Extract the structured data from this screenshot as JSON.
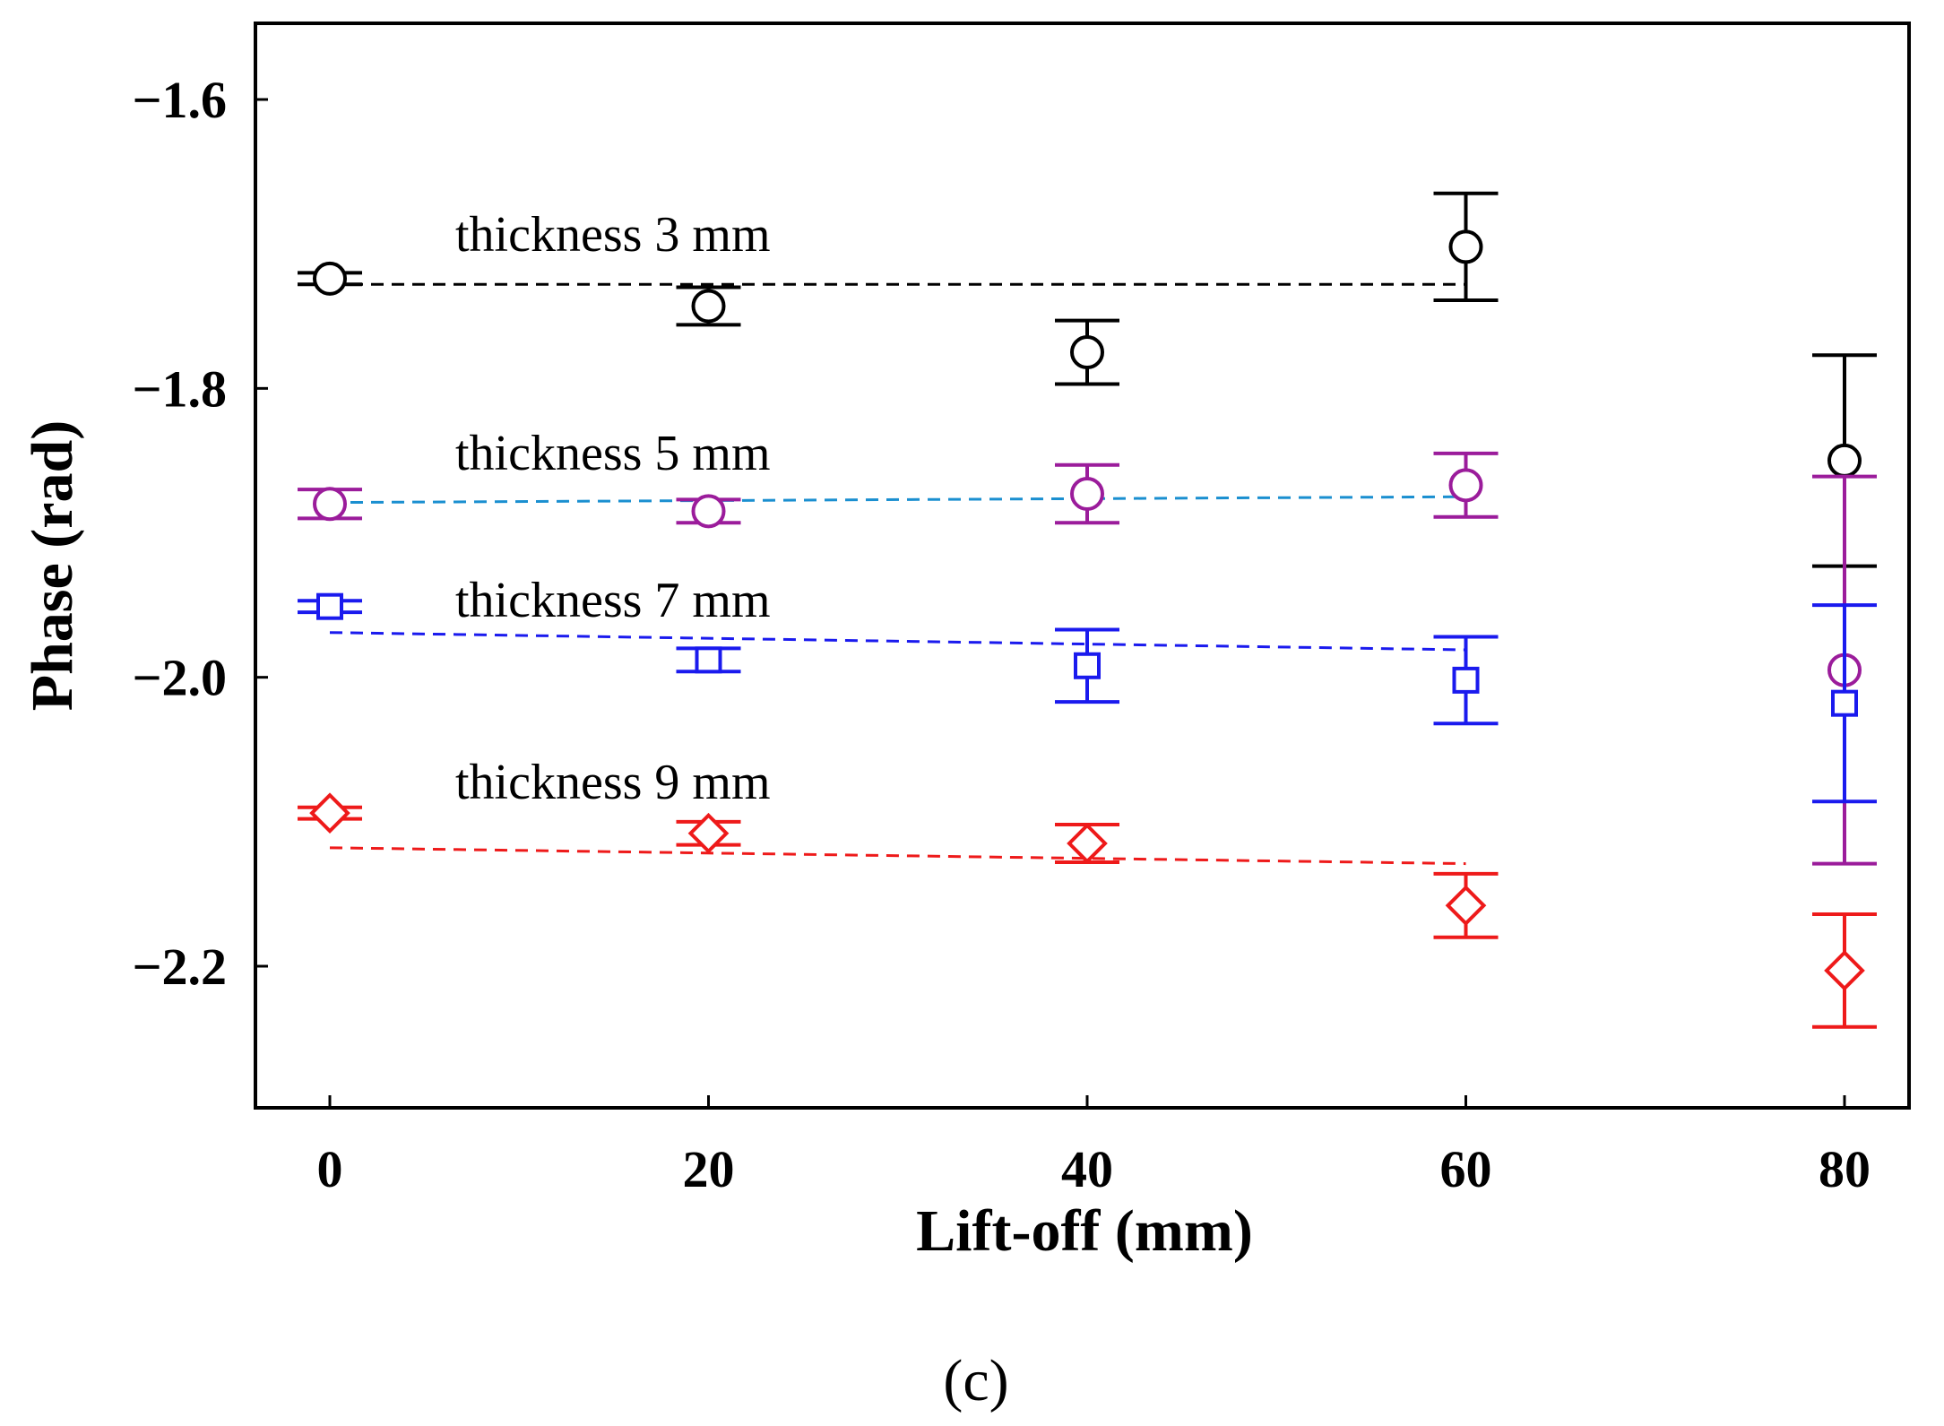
{
  "chart_data": {
    "type": "scatter",
    "title": "",
    "xlabel": "Lift-off (mm)",
    "ylabel": "Phase (rad)",
    "xlim": [
      -4,
      82
    ],
    "ylim": [
      -2.3,
      -1.55
    ],
    "xticks": [
      0,
      20,
      40,
      60,
      80
    ],
    "yticks": [
      -2.2,
      -2.0,
      -1.8,
      -1.6
    ],
    "xtick_labels": [
      "0",
      "20",
      "40",
      "60",
      "80"
    ],
    "ytick_labels": [
      "−2.2",
      "−2.0",
      "−1.8",
      "−1.6"
    ],
    "grid": false,
    "series": [
      {
        "name": "thickness 3 mm",
        "label": "thickness 3 mm",
        "color": "#000000",
        "marker": "circle",
        "x": [
          0,
          20,
          40,
          60,
          80
        ],
        "y": [
          -1.724,
          -1.743,
          -1.775,
          -1.702,
          -1.85
        ],
        "err": [
          0.004,
          0.013,
          0.022,
          0.037,
          0.073
        ],
        "fit": {
          "x": [
            0,
            60
          ],
          "y": [
            -1.728,
            -1.728
          ],
          "color": "#000000"
        }
      },
      {
        "name": "thickness 5 mm",
        "label": "thickness 5 mm",
        "color": "#9b1c9b",
        "marker": "circle",
        "x": [
          0,
          20,
          40,
          60,
          80
        ],
        "y": [
          -1.88,
          -1.885,
          -1.873,
          -1.867,
          -1.995
        ],
        "err": [
          0.01,
          0.008,
          0.02,
          0.022,
          0.134
        ],
        "fit": {
          "x": [
            0,
            60
          ],
          "y": [
            -1.879,
            -1.875
          ],
          "color": "#1a8fd0"
        }
      },
      {
        "name": "thickness 7 mm",
        "label": "thickness 7 mm",
        "color": "#1a1aee",
        "marker": "square",
        "x": [
          0,
          20,
          40,
          60,
          80
        ],
        "y": [
          -1.951,
          -1.988,
          -1.992,
          -2.002,
          -2.018
        ],
        "err": [
          0.004,
          0.008,
          0.025,
          0.03,
          0.068
        ],
        "fit": {
          "x": [
            0,
            60
          ],
          "y": [
            -1.969,
            -1.981
          ],
          "color": "#1a1aee"
        }
      },
      {
        "name": "thickness 9 mm",
        "label": "thickness 9 mm",
        "color": "#ee1a1a",
        "marker": "diamond",
        "x": [
          0,
          20,
          40,
          60,
          80
        ],
        "y": [
          -2.094,
          -2.108,
          -2.115,
          -2.158,
          -2.203
        ],
        "err": [
          0.004,
          0.008,
          0.013,
          0.022,
          0.039
        ],
        "fit": {
          "x": [
            0,
            60
          ],
          "y": [
            -2.118,
            -2.129
          ],
          "color": "#ee1a1a"
        }
      }
    ]
  },
  "caption": "(c)"
}
